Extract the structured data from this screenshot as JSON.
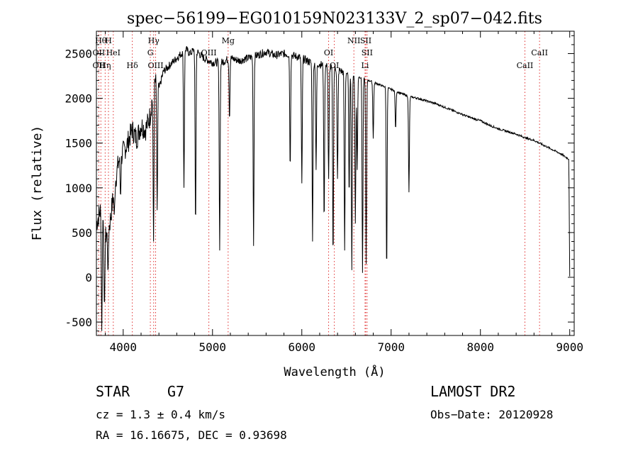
{
  "chart_data": {
    "type": "line",
    "title": "spec−56199−EG010159N023133V_2_sp07−042.fits",
    "xlabel": "Wavelength (Å)",
    "ylabel": "Flux (relative)",
    "xlim": [
      3700,
      9050
    ],
    "ylim": [
      -650,
      2750
    ],
    "xticks": [
      4000,
      5000,
      6000,
      7000,
      8000,
      9000
    ],
    "yticks": [
      -500,
      0,
      500,
      1000,
      1500,
      2000,
      2500
    ],
    "grid": false,
    "continuum": {
      "x": [
        3700,
        3760,
        3800,
        3850,
        3900,
        3950,
        4000,
        4050,
        4100,
        4150,
        4200,
        4250,
        4300,
        4350,
        4400,
        4450,
        4500,
        4550,
        4600,
        4650,
        4700,
        4750,
        4800,
        4900,
        5000,
        5100,
        5200,
        5300,
        5400,
        5500,
        5600,
        5700,
        5800,
        5900,
        6000,
        6100,
        6200,
        6300,
        6400,
        6500,
        6600,
        6700,
        6800,
        6900,
        7000,
        7100,
        7200,
        7300,
        7400,
        7500,
        7600,
        7700,
        7800,
        7900,
        8000,
        8100,
        8200,
        8300,
        8400,
        8500,
        8600,
        8700,
        8800,
        8900,
        8990,
        9000
      ],
      "y": [
        600,
        800,
        450,
        600,
        1000,
        1300,
        1400,
        1500,
        1650,
        1550,
        1700,
        1650,
        1800,
        2200,
        2100,
        2300,
        2350,
        2400,
        2450,
        2500,
        2550,
        2500,
        2550,
        2450,
        2400,
        2400,
        2450,
        2420,
        2450,
        2480,
        2520,
        2480,
        2500,
        2480,
        2450,
        2400,
        2380,
        2350,
        2320,
        2280,
        2250,
        2220,
        2180,
        2140,
        2100,
        2060,
        2020,
        2000,
        1970,
        1940,
        1900,
        1860,
        1820,
        1780,
        1750,
        1700,
        1660,
        1630,
        1600,
        1560,
        1530,
        1480,
        1430,
        1380,
        1320,
        0
      ]
    },
    "absorption": [
      {
        "x": 3760,
        "y": -600
      },
      {
        "x": 3790,
        "y": -350
      },
      {
        "x": 3830,
        "y": 50
      },
      {
        "x": 3900,
        "y": 700
      },
      {
        "x": 3970,
        "y": 900
      },
      {
        "x": 4340,
        "y": 400
      },
      {
        "x": 4380,
        "y": 750
      },
      {
        "x": 4680,
        "y": 1000
      },
      {
        "x": 4810,
        "y": 550
      },
      {
        "x": 5080,
        "y": 300
      },
      {
        "x": 5190,
        "y": 1750
      },
      {
        "x": 5460,
        "y": 350
      },
      {
        "x": 5870,
        "y": 1200
      },
      {
        "x": 6000,
        "y": 1050
      },
      {
        "x": 6120,
        "y": 400
      },
      {
        "x": 6160,
        "y": 1200
      },
      {
        "x": 6250,
        "y": 600
      },
      {
        "x": 6300,
        "y": 1100
      },
      {
        "x": 6350,
        "y": 200
      },
      {
        "x": 6400,
        "y": 1100
      },
      {
        "x": 6480,
        "y": 300
      },
      {
        "x": 6530,
        "y": 900
      },
      {
        "x": 6560,
        "y": 80
      },
      {
        "x": 6600,
        "y": 600
      },
      {
        "x": 6620,
        "y": 1200
      },
      {
        "x": 6680,
        "y": 50
      },
      {
        "x": 6720,
        "y": 150
      },
      {
        "x": 6800,
        "y": 1550
      },
      {
        "x": 6950,
        "y": 50
      },
      {
        "x": 7050,
        "y": 1650
      },
      {
        "x": 7200,
        "y": 950
      }
    ],
    "line_markers": [
      {
        "x": 3750,
        "label": "Hθ",
        "row": 0
      },
      {
        "x": 3727,
        "label": "OII",
        "row": 1
      },
      {
        "x": 3727,
        "label": "OII",
        "row": 2
      },
      {
        "x": 3835,
        "label": "H",
        "row": 0
      },
      {
        "x": 3798,
        "label": "Hη",
        "row": 2
      },
      {
        "x": 3889,
        "label": "HeI",
        "row": 1
      },
      {
        "x": 4102,
        "label": "Hδ",
        "row": 2
      },
      {
        "x": 4341,
        "label": "Hγ",
        "row": 0
      },
      {
        "x": 4304,
        "label": "G",
        "row": 1
      },
      {
        "x": 4363,
        "label": "OIII",
        "row": 2
      },
      {
        "x": 4959,
        "label": "OIII",
        "row": 1
      },
      {
        "x": 5175,
        "label": "Mg",
        "row": 0
      },
      {
        "x": 6300,
        "label": "OI",
        "row": 1
      },
      {
        "x": 6364,
        "label": "OI",
        "row": 2
      },
      {
        "x": 6583,
        "label": "NII",
        "row": 0
      },
      {
        "x": 6716,
        "label": "SII",
        "row": 0
      },
      {
        "x": 6731,
        "label": "SII",
        "row": 1
      },
      {
        "x": 6708,
        "label": "Li",
        "row": 2
      },
      {
        "x": 8662,
        "label": "CaII",
        "row": 1
      },
      {
        "x": 8498,
        "label": "CaII",
        "row": 2
      }
    ]
  },
  "info": {
    "class": "STAR",
    "subclass": "G7",
    "cz": "cz = 1.3 ± 0.4 km/s",
    "radec": "RA =  16.16675, DEC =    0.93698",
    "survey": "LAMOST DR2",
    "obsdate": "Obs−Date: 20120928"
  }
}
